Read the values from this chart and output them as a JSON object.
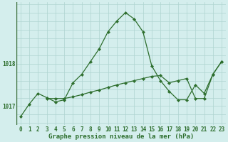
{
  "title": "Graphe pression niveau de la mer (hPa)",
  "background_color": "#d4eeed",
  "grid_color": "#aed4d0",
  "line_color": "#2d6e2d",
  "ylim": [
    1016.55,
    1019.45
  ],
  "yticks": [
    1017,
    1018
  ],
  "x_hours": [
    0,
    1,
    2,
    3,
    4,
    5,
    6,
    7,
    8,
    9,
    10,
    11,
    12,
    13,
    14,
    15,
    16,
    17,
    18,
    19,
    20,
    21,
    22,
    23
  ],
  "curve1": [
    1016.75,
    1017.05,
    1017.3,
    1017.2,
    1017.1,
    1017.15,
    1017.55,
    1017.75,
    1018.05,
    1018.35,
    1018.75,
    1019.0,
    1019.2,
    1019.05,
    1018.75,
    1017.95,
    1017.6,
    1017.35,
    1017.15,
    1017.15,
    1017.5,
    1017.3,
    1017.75,
    1018.05
  ],
  "curve2_x": [
    3,
    4,
    5,
    6,
    7,
    8,
    9,
    10,
    11,
    12,
    13,
    14,
    15,
    16,
    17,
    18,
    19,
    20,
    21,
    22,
    23
  ],
  "curve2": [
    1017.18,
    1017.18,
    1017.18,
    1017.22,
    1017.27,
    1017.33,
    1017.38,
    1017.44,
    1017.5,
    1017.55,
    1017.6,
    1017.65,
    1017.7,
    1017.72,
    1017.55,
    1017.6,
    1017.65,
    1017.18,
    1017.18,
    1017.75,
    1018.05
  ],
  "title_fontsize": 6.5,
  "tick_fontsize": 5.5
}
